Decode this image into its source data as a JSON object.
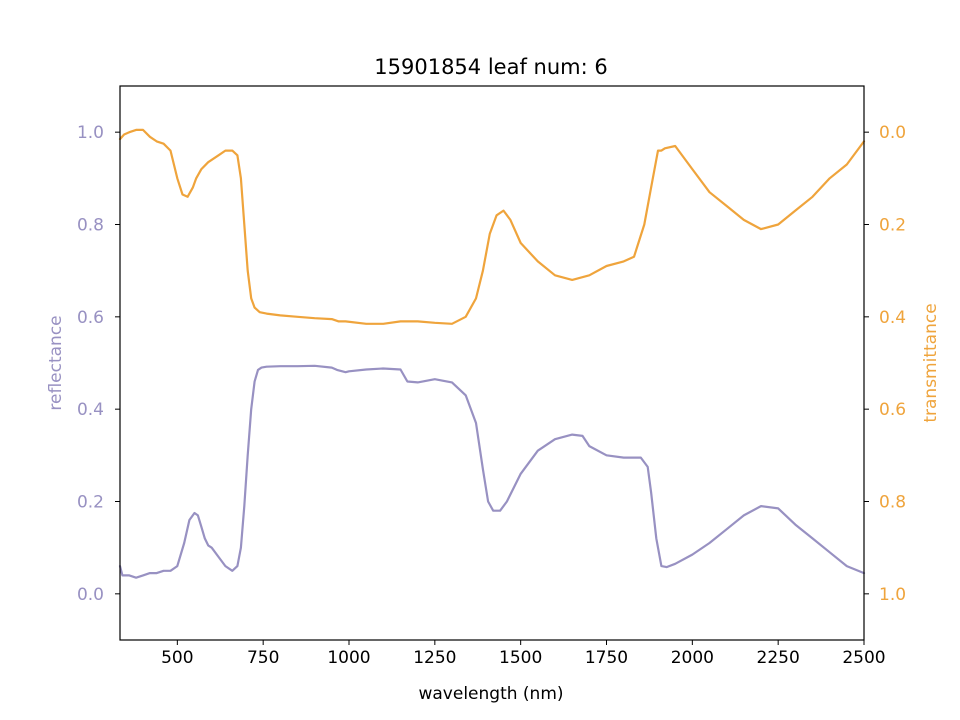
{
  "chart_data": {
    "type": "line",
    "title": "15901854 leaf num: 6",
    "xlabel": "wavelength (nm)",
    "ylabel_left": "reflectance",
    "ylabel_right": "transmittance",
    "xlim": [
      333,
      2500
    ],
    "ylim_left": [
      -0.1,
      1.1
    ],
    "ylim_right": [
      1.1,
      -0.1
    ],
    "right_axis_inverted": true,
    "xticks": [
      500,
      750,
      1000,
      1250,
      1500,
      1750,
      2000,
      2250,
      2500
    ],
    "yticks_left": [
      0.0,
      0.2,
      0.4,
      0.6,
      0.8,
      1.0
    ],
    "yticks_right": [
      0.0,
      0.2,
      0.4,
      0.6,
      0.8,
      1.0
    ],
    "grid": false,
    "legend": "none",
    "colors": {
      "reflectance": "#9891c2",
      "transmittance": "#efa43c"
    },
    "series": [
      {
        "name": "reflectance",
        "axis": "left",
        "color": "#9891c2",
        "x": [
          333,
          340,
          360,
          380,
          400,
          420,
          440,
          460,
          480,
          500,
          520,
          535,
          550,
          560,
          570,
          580,
          590,
          600,
          620,
          640,
          660,
          675,
          685,
          695,
          705,
          715,
          725,
          735,
          745,
          760,
          800,
          850,
          900,
          950,
          965,
          990,
          1000,
          1050,
          1100,
          1150,
          1170,
          1200,
          1250,
          1300,
          1340,
          1370,
          1390,
          1405,
          1420,
          1440,
          1460,
          1480,
          1500,
          1550,
          1600,
          1650,
          1680,
          1700,
          1750,
          1800,
          1850,
          1870,
          1880,
          1895,
          1910,
          1925,
          1950,
          2000,
          2050,
          2100,
          2150,
          2200,
          2250,
          2300,
          2350,
          2400,
          2450,
          2500
        ],
        "y": [
          0.06,
          0.04,
          0.04,
          0.035,
          0.04,
          0.045,
          0.045,
          0.05,
          0.05,
          0.06,
          0.11,
          0.16,
          0.175,
          0.17,
          0.145,
          0.12,
          0.105,
          0.1,
          0.08,
          0.06,
          0.05,
          0.06,
          0.1,
          0.19,
          0.3,
          0.4,
          0.46,
          0.485,
          0.49,
          0.492,
          0.493,
          0.493,
          0.494,
          0.49,
          0.485,
          0.48,
          0.482,
          0.486,
          0.488,
          0.486,
          0.46,
          0.458,
          0.465,
          0.458,
          0.43,
          0.37,
          0.27,
          0.2,
          0.18,
          0.18,
          0.2,
          0.23,
          0.26,
          0.31,
          0.335,
          0.345,
          0.342,
          0.32,
          0.3,
          0.295,
          0.295,
          0.275,
          0.22,
          0.12,
          0.06,
          0.058,
          0.065,
          0.085,
          0.11,
          0.14,
          0.17,
          0.19,
          0.185,
          0.15,
          0.12,
          0.09,
          0.06,
          0.045
        ]
      },
      {
        "name": "transmittance",
        "axis": "right",
        "color": "#efa43c",
        "x": [
          333,
          345,
          360,
          380,
          400,
          420,
          440,
          460,
          480,
          500,
          515,
          530,
          545,
          555,
          570,
          590,
          620,
          640,
          660,
          675,
          685,
          695,
          705,
          715,
          725,
          740,
          760,
          800,
          850,
          900,
          950,
          970,
          990,
          1050,
          1100,
          1150,
          1200,
          1250,
          1300,
          1340,
          1370,
          1390,
          1410,
          1430,
          1450,
          1470,
          1500,
          1550,
          1600,
          1650,
          1700,
          1750,
          1800,
          1830,
          1860,
          1880,
          1900,
          1910,
          1920,
          1950,
          2000,
          2050,
          2100,
          2150,
          2200,
          2250,
          2300,
          2350,
          2400,
          2450,
          2500
        ],
        "y": [
          0.015,
          0.005,
          0.0,
          -0.005,
          -0.005,
          0.01,
          0.02,
          0.025,
          0.04,
          0.1,
          0.135,
          0.14,
          0.12,
          0.1,
          0.08,
          0.065,
          0.05,
          0.04,
          0.04,
          0.05,
          0.1,
          0.2,
          0.3,
          0.36,
          0.38,
          0.39,
          0.393,
          0.397,
          0.4,
          0.403,
          0.405,
          0.41,
          0.41,
          0.415,
          0.415,
          0.41,
          0.41,
          0.413,
          0.415,
          0.4,
          0.36,
          0.3,
          0.22,
          0.18,
          0.17,
          0.19,
          0.24,
          0.28,
          0.31,
          0.32,
          0.31,
          0.29,
          0.28,
          0.27,
          0.2,
          0.12,
          0.04,
          0.04,
          0.035,
          0.03,
          0.08,
          0.13,
          0.16,
          0.19,
          0.21,
          0.2,
          0.17,
          0.14,
          0.1,
          0.07,
          0.02
        ]
      }
    ]
  }
}
